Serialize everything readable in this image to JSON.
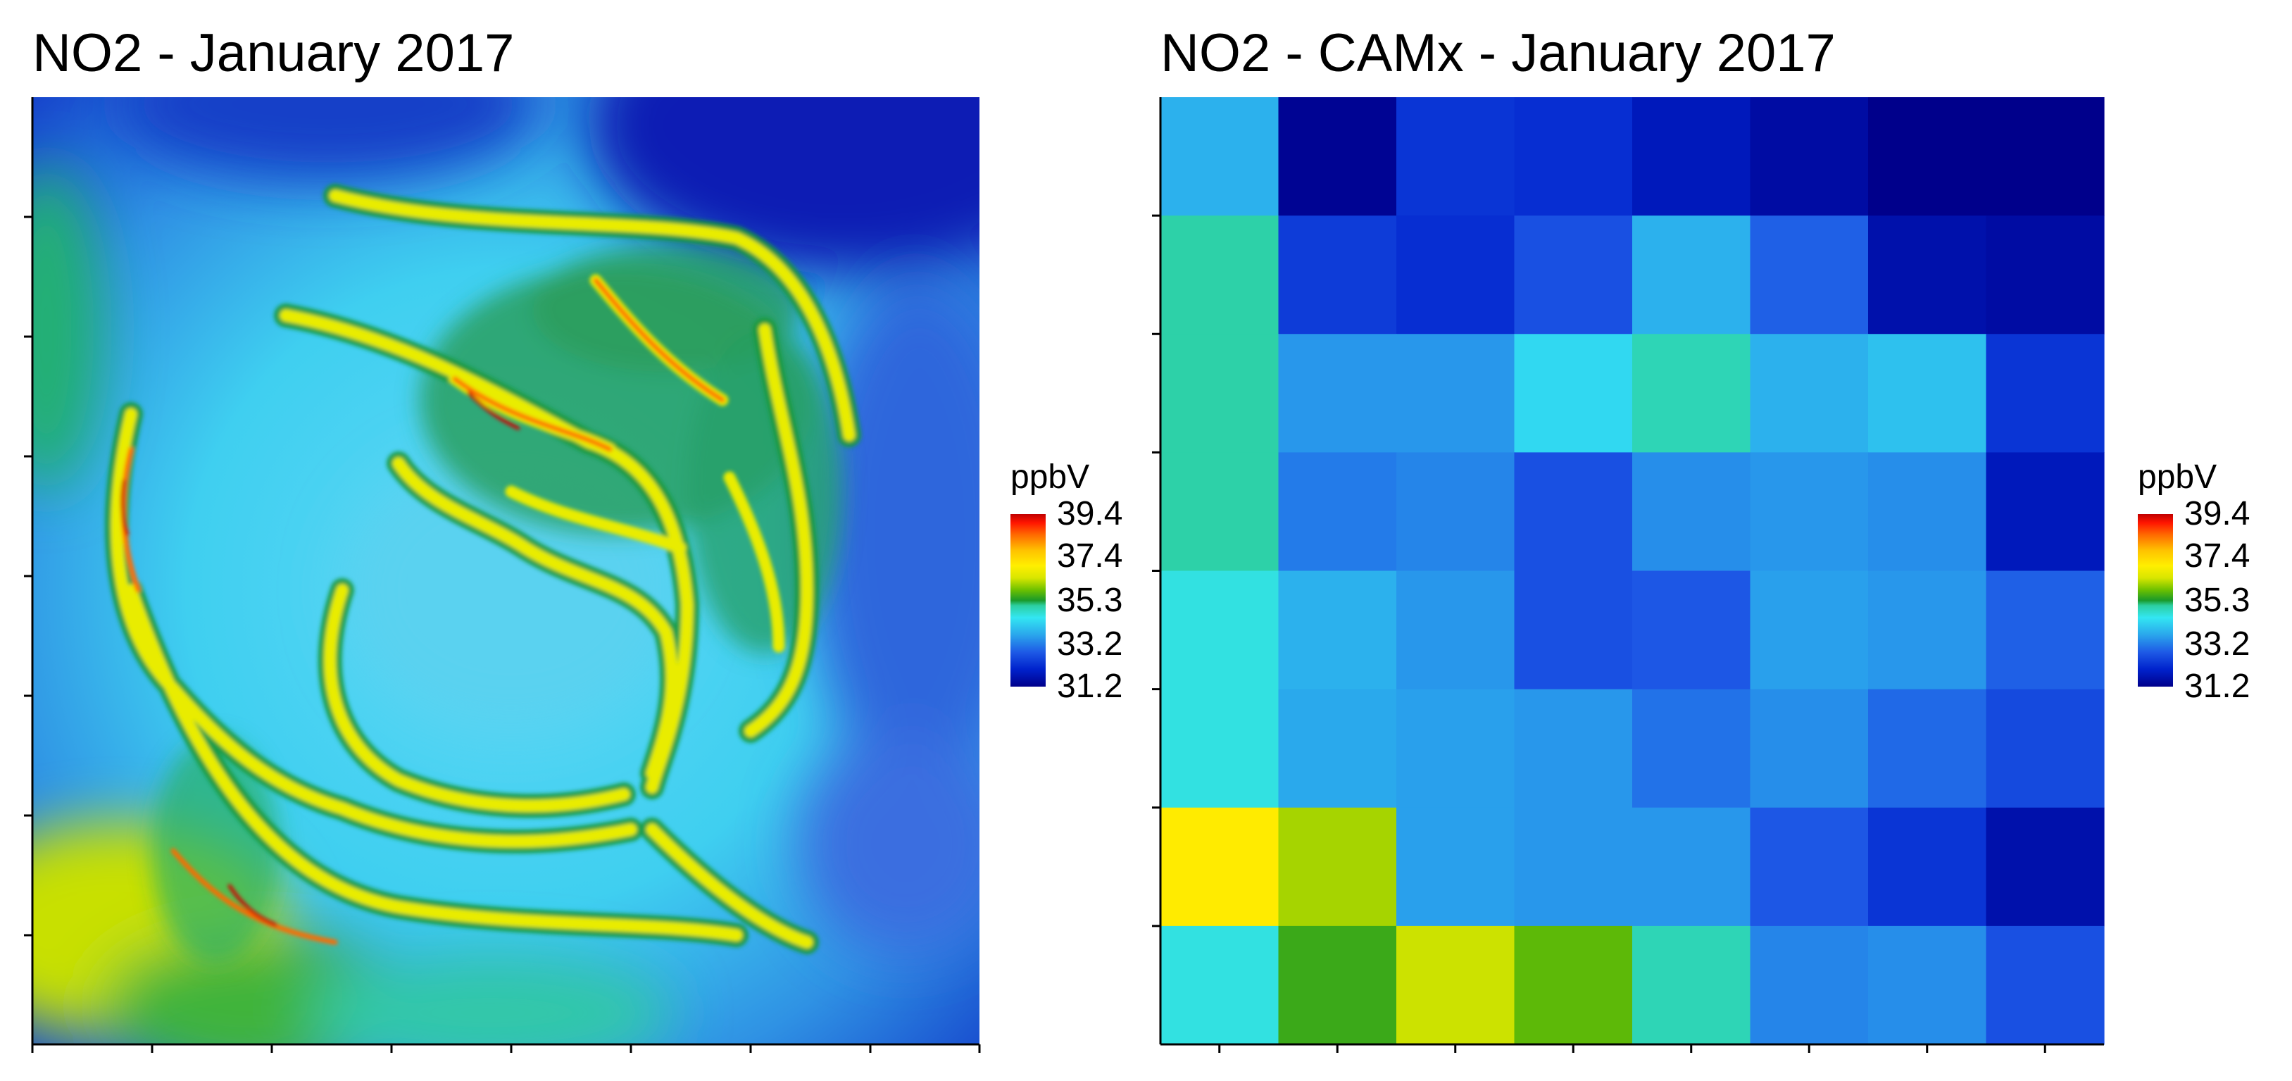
{
  "chart_data": [
    {
      "type": "heatmap",
      "title": "NO2 - January 2017",
      "xlabel": "",
      "ylabel": "",
      "colorbar": {
        "label": "ppbV",
        "ticks": [
          31.2,
          33.2,
          35.3,
          37.4,
          39.4
        ],
        "range": [
          31.2,
          39.4
        ]
      },
      "colorscale": [
        "#00008b",
        "#0022cc",
        "#1e5ae6",
        "#2aa6ec",
        "#33e6f2",
        "#2ccfa0",
        "#1a9a2a",
        "#6cc000",
        "#d8e600",
        "#ffef00",
        "#ffc200",
        "#ff6a00",
        "#ff1500",
        "#c00000"
      ],
      "resolution": "continuous (interpolated surface)",
      "grid": false,
      "legend_position": "right"
    },
    {
      "type": "heatmap",
      "title": "NO2 - CAMx - January 2017",
      "xlabel": "",
      "ylabel": "",
      "colorbar": {
        "label": "ppbV",
        "ticks": [
          31.2,
          33.2,
          35.3,
          37.4,
          39.4
        ],
        "range": [
          31.2,
          39.4
        ]
      },
      "grid": false,
      "legend_position": "right",
      "rows": 8,
      "cols": 8,
      "z": [
        [
          33.8,
          31.3,
          32.3,
          32.2,
          31.8,
          31.5,
          31.2,
          31.2
        ],
        [
          35.0,
          32.4,
          32.2,
          32.7,
          33.8,
          32.9,
          31.6,
          31.5
        ],
        [
          35.0,
          33.5,
          33.5,
          34.3,
          34.9,
          33.8,
          34.0,
          32.3
        ],
        [
          35.0,
          33.2,
          33.3,
          32.7,
          33.4,
          33.5,
          33.4,
          31.8
        ],
        [
          34.6,
          33.8,
          33.5,
          32.7,
          32.8,
          33.6,
          33.5,
          32.9
        ],
        [
          34.6,
          33.7,
          33.6,
          33.5,
          33.1,
          33.4,
          33.0,
          32.6
        ],
        [
          37.0,
          36.1,
          33.6,
          33.5,
          33.5,
          32.8,
          32.3,
          31.6
        ],
        [
          34.6,
          35.5,
          36.3,
          35.7,
          34.9,
          33.3,
          33.4,
          32.7
        ]
      ]
    }
  ]
}
